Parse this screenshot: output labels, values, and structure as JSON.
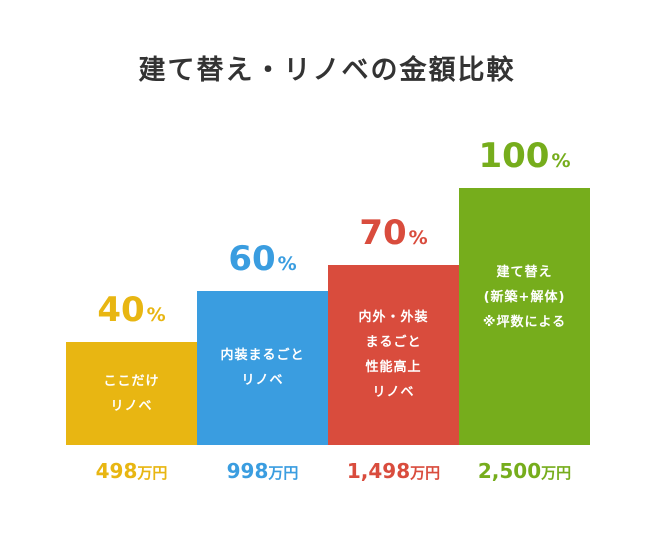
{
  "title": "建て替え・リノベの金額比較",
  "chart_data": {
    "type": "bar",
    "title": "建て替え・リノベの金額比較",
    "unit_percent": "%",
    "unit_price": "万円",
    "ylim": [
      0,
      100
    ],
    "grid": false,
    "categories": [
      {
        "label_lines": [
          "ここだけ",
          "リノベ"
        ],
        "percent": 40,
        "price": "498",
        "color": "#e8b612"
      },
      {
        "label_lines": [
          "内装まるごと",
          "リノベ"
        ],
        "percent": 60,
        "price": "998",
        "color": "#3a9de0"
      },
      {
        "label_lines": [
          "内外・外装",
          "まるごと",
          "性能高上",
          "リノベ"
        ],
        "percent": 70,
        "price": "1,498",
        "color": "#d94c3d"
      },
      {
        "label_lines": [
          "建て替え",
          "(新築+解体)",
          "※坪数による"
        ],
        "percent": 100,
        "price": "2,500",
        "color": "#76ad1c"
      }
    ]
  }
}
